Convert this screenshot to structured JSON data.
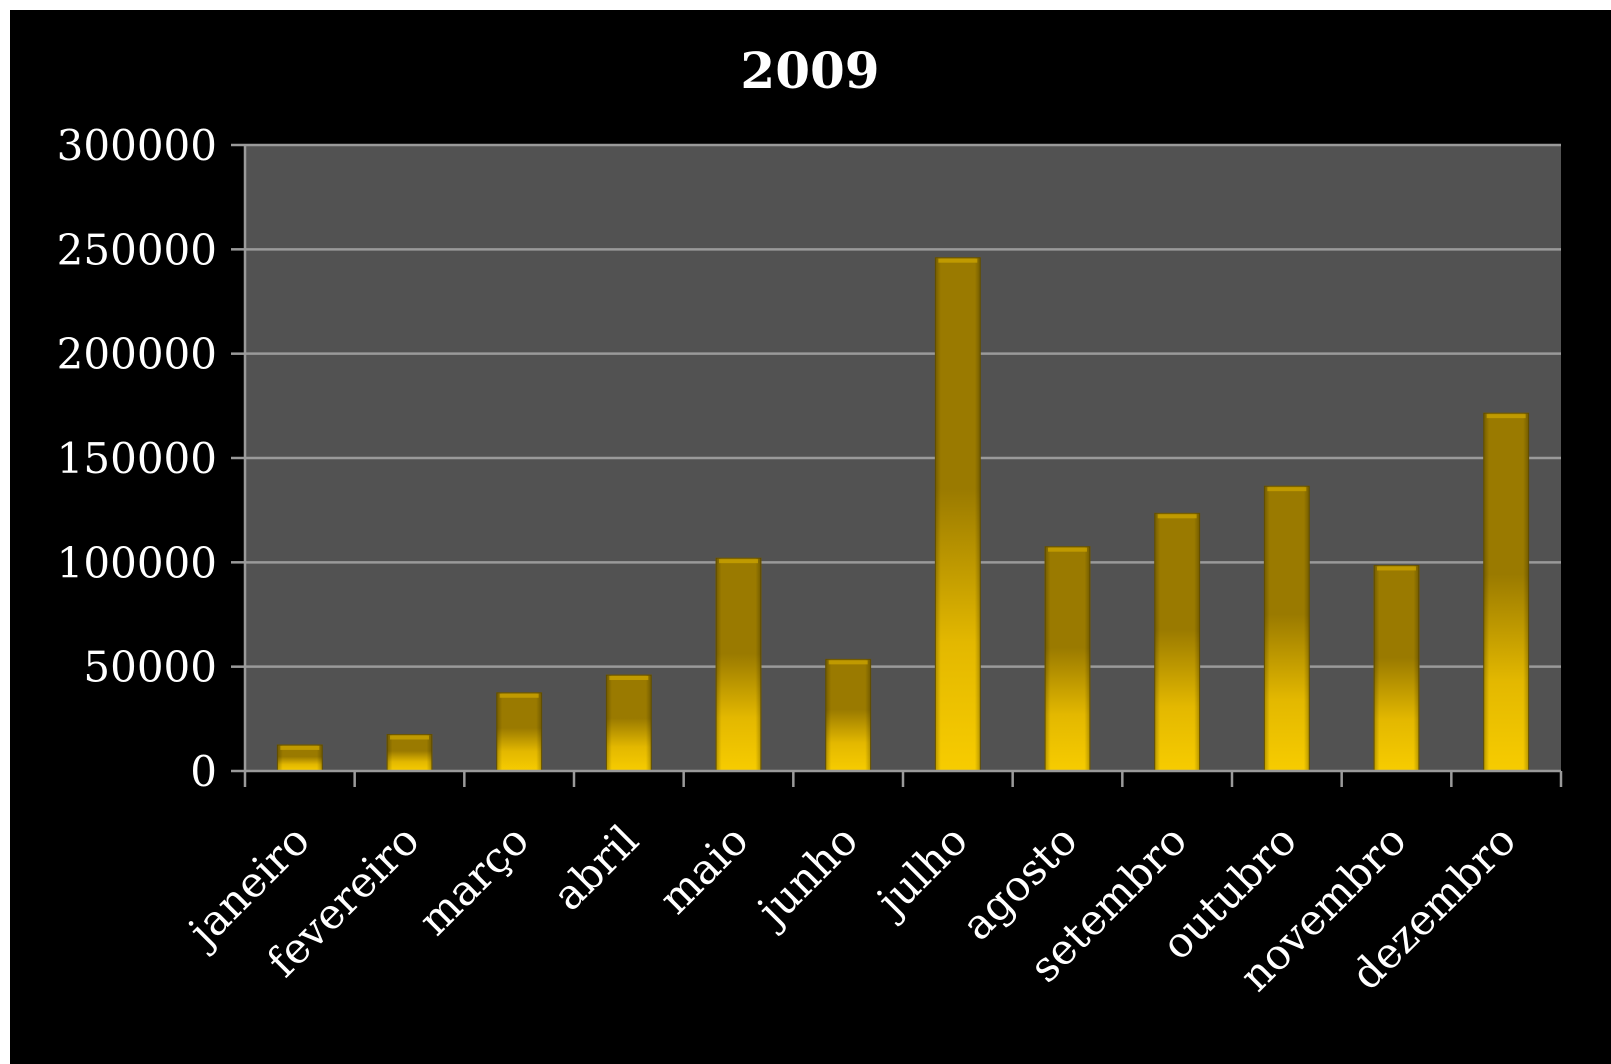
{
  "chart_data": {
    "type": "bar",
    "title": "2009",
    "xlabel": "",
    "ylabel": "",
    "categories": [
      "janeiro",
      "fevereiro",
      "março",
      "abril",
      "maio",
      "junho",
      "julho",
      "agosto",
      "setembro",
      "outubro",
      "novembro",
      "dezembro"
    ],
    "values": [
      12500,
      17500,
      37500,
      46000,
      102000,
      53500,
      246000,
      107500,
      123500,
      136500,
      98500,
      171500
    ],
    "ylim": [
      0,
      300000
    ],
    "yticks": [
      "0",
      "50000",
      "100000",
      "150000",
      "200000",
      "250000",
      "300000"
    ],
    "grid": true,
    "legend": "none",
    "colors": {
      "background": "#000000",
      "plot_area": "#525252",
      "gridline": "#9a9a9a",
      "bar_top": "#9a7a00",
      "bar_bottom": "#f7cc00",
      "text": "#ffffff"
    }
  }
}
